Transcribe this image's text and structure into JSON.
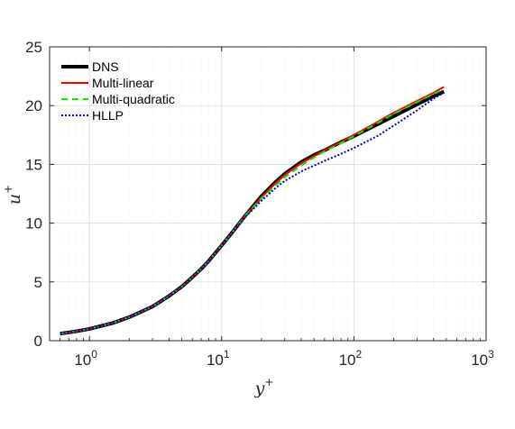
{
  "chart_data": {
    "type": "line",
    "title": "",
    "xlabel": "y",
    "xlabel_sup": "+",
    "ylabel": "u",
    "ylabel_sup": "+",
    "xscale": "log",
    "xlim": [
      0.5,
      1000
    ],
    "ylim": [
      0,
      25
    ],
    "grid": true,
    "legend_position": "top-left",
    "yticks": [
      0,
      5,
      10,
      15,
      20,
      25
    ],
    "ytick_labels": [
      "0",
      "5",
      "10",
      "15",
      "20",
      "25"
    ],
    "xticks": [
      1,
      10,
      100,
      1000
    ],
    "xtick_labels": [
      {
        "base": "10",
        "exp": "0"
      },
      {
        "base": "10",
        "exp": "1"
      },
      {
        "base": "10",
        "exp": "2"
      },
      {
        "base": "10",
        "exp": "3"
      }
    ],
    "series": [
      {
        "name": "DNS",
        "color": "#000000",
        "style": "solid",
        "x": [
          0.6,
          0.8,
          1,
          1.5,
          2,
          3,
          4,
          5,
          6,
          7,
          8,
          10,
          12,
          15,
          20,
          25,
          30,
          40,
          50,
          60,
          80,
          100,
          150,
          200,
          300,
          400,
          480
        ],
        "y": [
          0.6,
          0.8,
          1.0,
          1.5,
          2.0,
          2.9,
          3.8,
          4.6,
          5.4,
          6.1,
          6.8,
          8.1,
          9.2,
          10.6,
          12.3,
          13.4,
          14.2,
          15.2,
          15.8,
          16.2,
          16.9,
          17.4,
          18.4,
          19.1,
          20.1,
          20.8,
          21.2
        ]
      },
      {
        "name": "Multi-linear",
        "color": "#ff0000",
        "style": "solid",
        "x": [
          0.6,
          0.8,
          1,
          1.5,
          2,
          3,
          4,
          5,
          6,
          7,
          8,
          10,
          12,
          15,
          20,
          25,
          30,
          40,
          50,
          60,
          80,
          100,
          150,
          200,
          300,
          400,
          480
        ],
        "y": [
          0.6,
          0.8,
          1.0,
          1.5,
          2.0,
          2.9,
          3.8,
          4.6,
          5.4,
          6.1,
          6.8,
          8.1,
          9.2,
          10.6,
          12.2,
          13.3,
          14.1,
          15.1,
          15.7,
          16.2,
          16.9,
          17.5,
          18.6,
          19.4,
          20.4,
          21.1,
          21.6
        ]
      },
      {
        "name": "Multi-quadratic",
        "color": "#00ee00",
        "style": "dashed",
        "x": [
          0.6,
          0.8,
          1,
          1.5,
          2,
          3,
          4,
          5,
          6,
          7,
          8,
          10,
          12,
          15,
          20,
          25,
          30,
          40,
          50,
          60,
          80,
          100,
          150,
          200,
          300,
          400,
          480
        ],
        "y": [
          0.6,
          0.8,
          1.0,
          1.5,
          2.0,
          2.9,
          3.8,
          4.6,
          5.4,
          6.1,
          6.8,
          8.1,
          9.2,
          10.6,
          12.1,
          13.1,
          13.9,
          14.9,
          15.6,
          16.1,
          16.8,
          17.4,
          18.5,
          19.3,
          20.3,
          21.0,
          21.4
        ]
      },
      {
        "name": "HLLP",
        "color": "#0000cc",
        "style": "dotted",
        "x": [
          0.6,
          0.8,
          1,
          1.5,
          2,
          3,
          4,
          5,
          6,
          7,
          8,
          10,
          12,
          15,
          20,
          25,
          30,
          40,
          50,
          60,
          80,
          100,
          150,
          200,
          300,
          400,
          480
        ],
        "y": [
          0.6,
          0.8,
          1.0,
          1.5,
          2.0,
          2.9,
          3.8,
          4.6,
          5.4,
          6.1,
          6.8,
          8.1,
          9.2,
          10.5,
          11.9,
          12.9,
          13.6,
          14.4,
          14.9,
          15.3,
          15.9,
          16.4,
          17.4,
          18.3,
          19.6,
          20.6,
          21.1
        ]
      }
    ]
  }
}
